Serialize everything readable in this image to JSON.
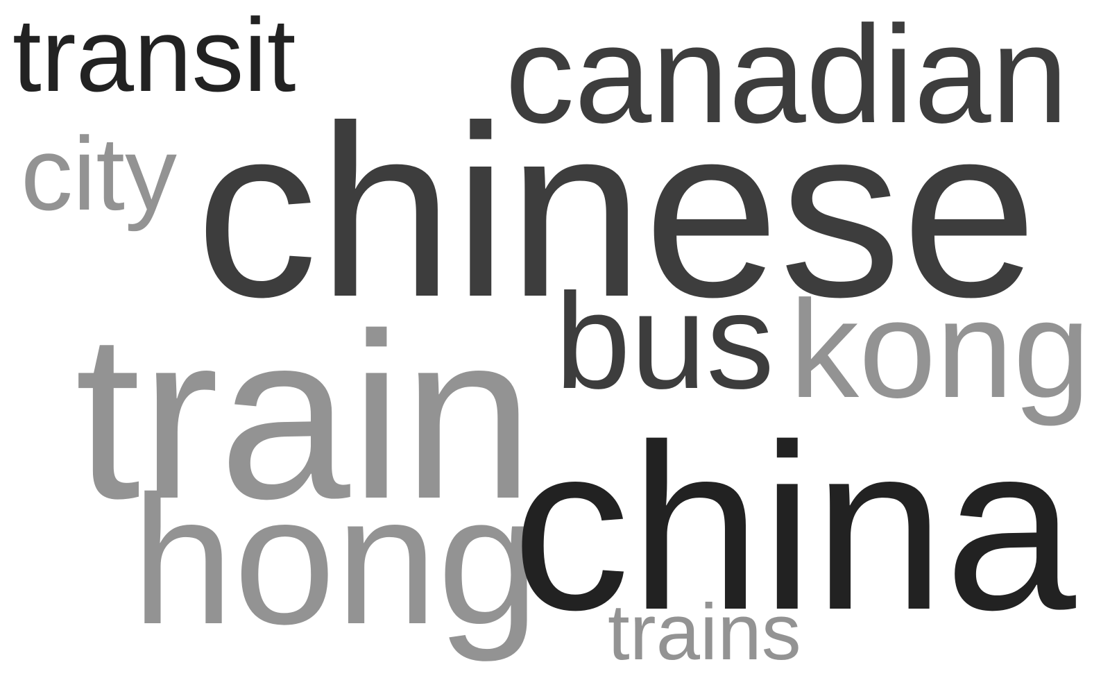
{
  "words": {
    "transit": "transit",
    "canadian": "canadian",
    "city": "city",
    "chinese": "chinese",
    "bus": "bus",
    "kong": "kong",
    "train": "train",
    "hong": "hong",
    "china": "china",
    "trains": "trains"
  },
  "colors": {
    "background": "#ffffff",
    "dark": "#222222",
    "medium": "#3d3d3d",
    "light": "#939393"
  }
}
